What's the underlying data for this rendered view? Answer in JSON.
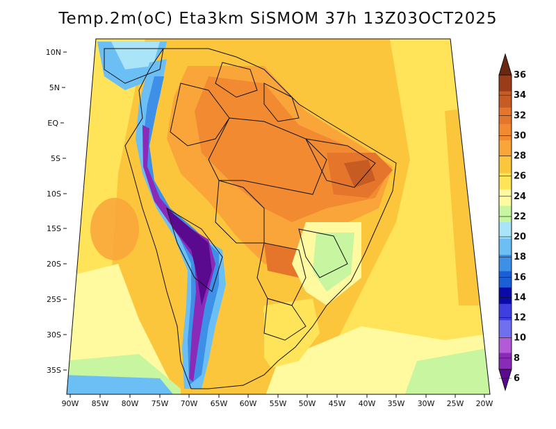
{
  "title": "Temp.2m(oC) Eta3km SiSMOM 37h 13Z03OCT2025",
  "axes": {
    "lat_labels": [
      "10N",
      "5N",
      "EQ",
      "5S",
      "10S",
      "15S",
      "20S",
      "25S",
      "30S",
      "35S"
    ],
    "lon_labels": [
      "90W",
      "85W",
      "80W",
      "75W",
      "70W",
      "65W",
      "60W",
      "55W",
      "50W",
      "45W",
      "40W",
      "35W",
      "30W",
      "25W",
      "20W"
    ]
  },
  "colorbar": {
    "labels": [
      "6",
      "8",
      "10",
      "12",
      "14",
      "16",
      "18",
      "20",
      "22",
      "24",
      "26",
      "28",
      "30",
      "32",
      "34",
      "36"
    ],
    "colors": [
      "#5a0a8e",
      "#8a2ab8",
      "#b35ad9",
      "#6f6ff0",
      "#3f3fe0",
      "#0a0aa8",
      "#1b5fd6",
      "#3d8fe8",
      "#6bbff5",
      "#a9e4f8",
      "#c8f5a0",
      "#fffaa0",
      "#ffe45a",
      "#fcc63c",
      "#f9a53a",
      "#f28a32",
      "#e6752c",
      "#c65c24",
      "#9b3c18",
      "#6a2810"
    ]
  },
  "legend_colors": {
    "ocean_warm": "#fcc63c",
    "ocean_mild": "#ffe45a",
    "ocean_cool": "#fffaa0",
    "land_hot": "#f28a32",
    "andes_cold": "#5a0a8e"
  }
}
